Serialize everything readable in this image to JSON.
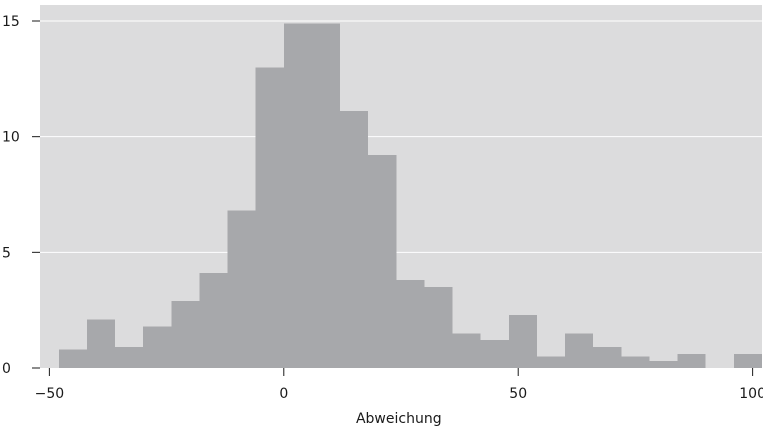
{
  "chart_data": {
    "type": "bar",
    "xlabel": "Abweichung",
    "ylabel": "",
    "xlim": [
      -52,
      102
    ],
    "ylim": [
      0,
      15
    ],
    "x_ticks": [
      -50,
      0,
      50,
      100
    ],
    "x_tick_labels": [
      "−50",
      "0",
      "50",
      "100"
    ],
    "y_ticks": [
      0,
      5,
      10,
      15
    ],
    "y_tick_labels": [
      "0",
      "5",
      "10",
      "15"
    ],
    "grid": "horizontal",
    "bin_width": 6,
    "bins": [
      {
        "start": -48,
        "end": -42,
        "count": 0.8
      },
      {
        "start": -42,
        "end": -36,
        "count": 2.1
      },
      {
        "start": -36,
        "end": -30,
        "count": 0.9
      },
      {
        "start": -30,
        "end": -24,
        "count": 1.8
      },
      {
        "start": -24,
        "end": -18,
        "count": 2.9
      },
      {
        "start": -18,
        "end": -12,
        "count": 4.1
      },
      {
        "start": -12,
        "end": -6,
        "count": 6.8
      },
      {
        "start": -6,
        "end": 0,
        "count": 13.0
      },
      {
        "start": 0,
        "end": 6,
        "count": 14.9
      },
      {
        "start": 6,
        "end": 12,
        "count": 14.9
      },
      {
        "start": 12,
        "end": 18,
        "count": 11.1
      },
      {
        "start": 18,
        "end": 24,
        "count": 9.2
      },
      {
        "start": 24,
        "end": 30,
        "count": 3.8
      },
      {
        "start": 30,
        "end": 36,
        "count": 3.5
      },
      {
        "start": 36,
        "end": 42,
        "count": 1.5
      },
      {
        "start": 42,
        "end": 48,
        "count": 1.2
      },
      {
        "start": 48,
        "end": 54,
        "count": 2.3
      },
      {
        "start": 54,
        "end": 60,
        "count": 0.5
      },
      {
        "start": 60,
        "end": 66,
        "count": 1.5
      },
      {
        "start": 66,
        "end": 72,
        "count": 0.9
      },
      {
        "start": 72,
        "end": 78,
        "count": 0.5
      },
      {
        "start": 78,
        "end": 84,
        "count": 0.3
      },
      {
        "start": 84,
        "end": 90,
        "count": 0.6
      },
      {
        "start": 90,
        "end": 96,
        "count": 0
      },
      {
        "start": 96,
        "end": 102,
        "count": 0.6
      }
    ],
    "colors": {
      "background": "#dcdcdd",
      "bar": "#a7a8ab",
      "grid": "#ffffff",
      "text": "#1a1a1a"
    }
  }
}
